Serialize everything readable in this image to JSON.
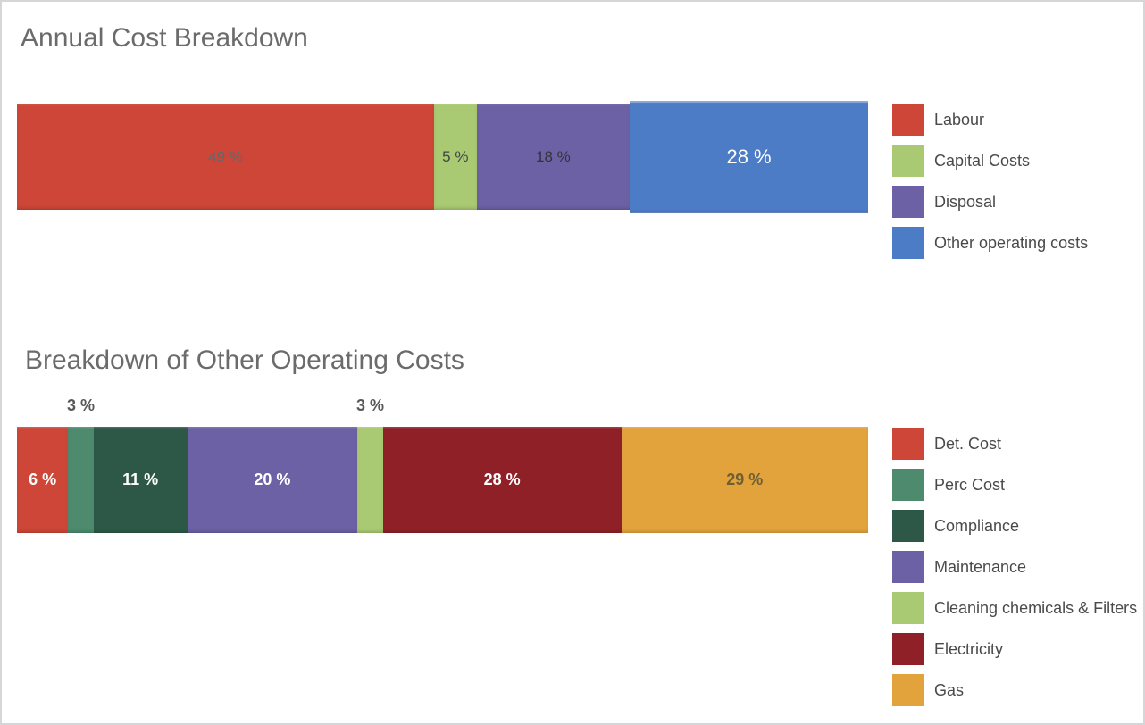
{
  "page": {
    "background": "#ffffff",
    "border_color": "#d5d6d7",
    "title_color": "#6b6b6b",
    "legend_text_color": "#4a4a4a"
  },
  "chart_data": [
    {
      "type": "bar",
      "variant": "horizontal-stacked-100-percent",
      "title": "Annual Cost Breakdown",
      "unit": "%",
      "total": 100,
      "axes": "none",
      "grid": false,
      "legend_position": "right",
      "series": [
        {
          "name": "Labour",
          "value": 49,
          "display": "49 %",
          "color": "#cd4637",
          "label_color": "#5d6a73",
          "label_position": "inside",
          "label_size": 17,
          "label_weight": 400
        },
        {
          "name": "Capital Costs",
          "value": 5,
          "display": "5 %",
          "color": "#a9c972",
          "label_color": "#3f4447",
          "label_position": "inside",
          "label_size": 17,
          "label_weight": 400
        },
        {
          "name": "Disposal",
          "value": 18,
          "display": "18 %",
          "color": "#6b61a4",
          "label_color": "#32323b",
          "label_position": "inside",
          "label_size": 17,
          "label_weight": 400
        },
        {
          "name": "Other operating costs",
          "value": 28,
          "display": "28 %",
          "color": "#4d7cc7",
          "label_color": "#ffffff",
          "label_position": "inside",
          "label_size": 22,
          "label_weight": 400,
          "emphasized": true
        }
      ]
    },
    {
      "type": "bar",
      "variant": "horizontal-stacked-100-percent",
      "title": "Breakdown of Other Operating Costs",
      "unit": "%",
      "total": 100,
      "axes": "none",
      "grid": false,
      "legend_position": "right",
      "series": [
        {
          "name": "Det. Cost",
          "value": 6,
          "display": "6 %",
          "color": "#cd4637",
          "label_color": "#ffffff",
          "label_position": "inside",
          "label_size": 18,
          "label_weight": 600
        },
        {
          "name": "Perc Cost",
          "value": 3,
          "display": "3 %",
          "color": "#4d8a6e",
          "label_color": "#595959",
          "label_position": "outside-top",
          "label_size": 18,
          "label_weight": 600
        },
        {
          "name": "Compliance",
          "value": 11,
          "display": "11 %",
          "color": "#2d5847",
          "label_color": "#ffffff",
          "label_position": "inside",
          "label_size": 18,
          "label_weight": 600
        },
        {
          "name": "Maintenance",
          "value": 20,
          "display": "20 %",
          "color": "#6b61a4",
          "label_color": "#ffffff",
          "label_position": "inside",
          "label_size": 18,
          "label_weight": 600
        },
        {
          "name": "Cleaning chemicals & Filters",
          "value": 3,
          "display": "3 %",
          "color": "#a9c972",
          "label_color": "#595959",
          "label_position": "outside-top",
          "label_size": 18,
          "label_weight": 600
        },
        {
          "name": "Electricity",
          "value": 28,
          "display": "28 %",
          "color": "#8f2027",
          "label_color": "#ffffff",
          "label_position": "inside",
          "label_size": 18,
          "label_weight": 600
        },
        {
          "name": "Gas",
          "value": 29,
          "display": "29 %",
          "color": "#e2a33c",
          "label_color": "#6e5f33",
          "label_position": "inside",
          "label_size": 18,
          "label_weight": 600
        }
      ]
    }
  ]
}
